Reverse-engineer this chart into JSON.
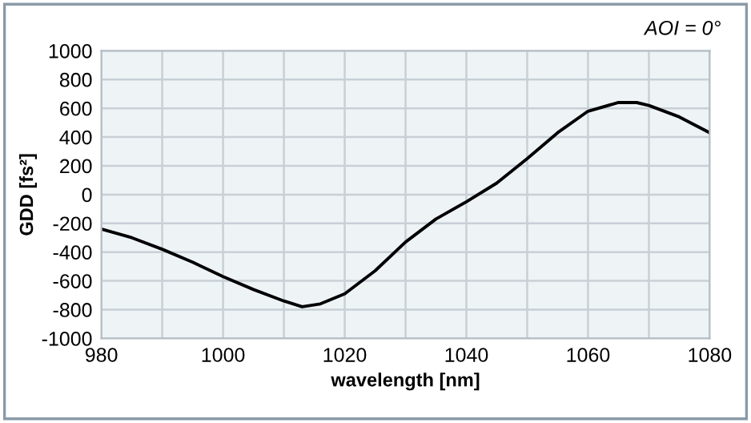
{
  "chart_data": {
    "type": "line",
    "xlabel": "wavelength [nm]",
    "ylabel": "GDD [fs²]",
    "annotations": [
      "AOI = 0°"
    ],
    "x": [
      980,
      985,
      990,
      995,
      1000,
      1005,
      1010,
      1013,
      1016,
      1020,
      1025,
      1030,
      1035,
      1040,
      1045,
      1050,
      1055,
      1060,
      1065,
      1068,
      1070,
      1075,
      1080
    ],
    "series": [
      {
        "color": "#000000",
        "values": [
          -240,
          -300,
          -380,
          -470,
          -570,
          -660,
          -740,
          -780,
          -760,
          -690,
          -530,
          -330,
          -170,
          -50,
          80,
          250,
          430,
          580,
          640,
          640,
          620,
          540,
          430
        ]
      }
    ],
    "xlim": [
      980,
      1080
    ],
    "ylim": [
      -1000,
      1000
    ],
    "xticks": [
      980,
      {
        "value": 990,
        "label": null
      },
      1000,
      {
        "value": 1010,
        "label": null
      },
      1020,
      {
        "value": 1030,
        "label": null
      },
      1040,
      {
        "value": 1050,
        "label": null
      },
      1060,
      {
        "value": 1070,
        "label": null
      },
      1080
    ],
    "yticks": [
      -1000,
      -800,
      -600,
      -400,
      -200,
      0,
      200,
      400,
      600,
      800,
      1000
    ],
    "grid": true,
    "marker": "none",
    "line_style": "solid"
  }
}
